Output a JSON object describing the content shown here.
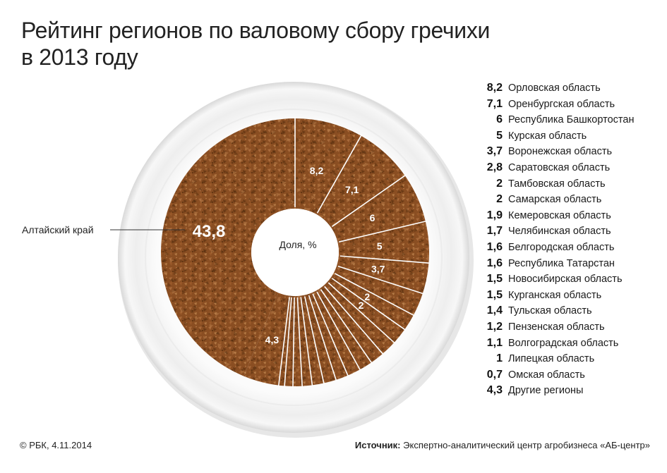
{
  "title_line1": "Рейтинг регионов по валовому сбору гречихи",
  "title_line2": "в 2013 году",
  "center_label": "Доля, %",
  "callout_label": "Алтайский край",
  "copyright": "© РБК, 4.11.2014",
  "source_prefix": "Источник:",
  "source_text": "Экспертно-аналитический центр агробизнеса «АБ-центр»",
  "colors": {
    "grain": "#8a4e22",
    "grain_dark": "#5e3210",
    "grain_light": "#b0733d",
    "plate": "#ffffff",
    "divider": "#ffffff"
  },
  "chart_data": {
    "type": "pie",
    "unit": "%",
    "slices": [
      {
        "name": "Алтайский край",
        "value": 43.8,
        "label": "43,8"
      },
      {
        "name": "Орловская область",
        "value": 8.2,
        "label": "8,2"
      },
      {
        "name": "Оренбургская область",
        "value": 7.1,
        "label": "7,1"
      },
      {
        "name": "Республика Башкортостан",
        "value": 6,
        "label": "6"
      },
      {
        "name": "Курская область",
        "value": 5,
        "label": "5"
      },
      {
        "name": "Воронежская область",
        "value": 3.7,
        "label": "3,7"
      },
      {
        "name": "Саратовская область",
        "value": 2.8,
        "label": "2,8"
      },
      {
        "name": "Тамбовская область",
        "value": 2,
        "label": "2"
      },
      {
        "name": "Самарская область",
        "value": 2,
        "label": "2"
      },
      {
        "name": "Кемеровская область",
        "value": 1.9,
        "label": "1,9"
      },
      {
        "name": "Челябинская область",
        "value": 1.7,
        "label": "1,7"
      },
      {
        "name": "Белгородская область",
        "value": 1.6,
        "label": "1,6"
      },
      {
        "name": "Республика Татарстан",
        "value": 1.6,
        "label": "1,6"
      },
      {
        "name": "Новосибирская область",
        "value": 1.5,
        "label": "1,5"
      },
      {
        "name": "Курганская область",
        "value": 1.5,
        "label": "1,5"
      },
      {
        "name": "Тульская область",
        "value": 1.4,
        "label": "1,4"
      },
      {
        "name": "Пензенская область",
        "value": 1.2,
        "label": "1,2"
      },
      {
        "name": "Волгоградская область",
        "value": 1.1,
        "label": "1,1"
      },
      {
        "name": "Липецкая область",
        "value": 1,
        "label": "1"
      },
      {
        "name": "Омская область",
        "value": 0.7,
        "label": "0,7"
      },
      {
        "name": "Другие регионы",
        "value": 4.3,
        "label": "4,3"
      }
    ],
    "labeled_on_chart": [
      "43,8",
      "8,2",
      "7,1",
      "6",
      "5",
      "3,7",
      "2",
      "2",
      "4,3"
    ]
  }
}
